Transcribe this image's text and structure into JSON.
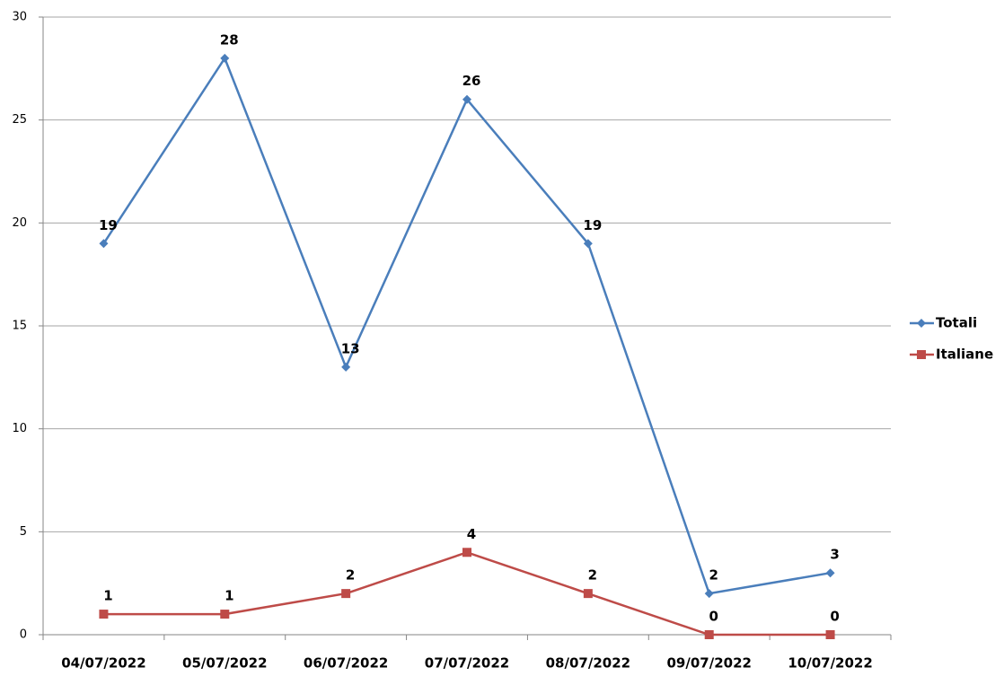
{
  "chart_data": {
    "type": "line",
    "categories": [
      "04/07/2022",
      "05/07/2022",
      "06/07/2022",
      "07/07/2022",
      "08/07/2022",
      "09/07/2022",
      "10/07/2022"
    ],
    "series": [
      {
        "name": "Totali",
        "color": "#4a7ebb",
        "marker": "diamond",
        "values": [
          19,
          28,
          13,
          26,
          19,
          2,
          3
        ]
      },
      {
        "name": "Italiane",
        "color": "#be4b48",
        "marker": "square",
        "values": [
          1,
          1,
          2,
          4,
          2,
          0,
          0
        ]
      }
    ],
    "ylim": [
      0,
      30
    ],
    "yticks": [
      0,
      5,
      10,
      15,
      20,
      25,
      30
    ],
    "grid": true,
    "legend": "right"
  }
}
